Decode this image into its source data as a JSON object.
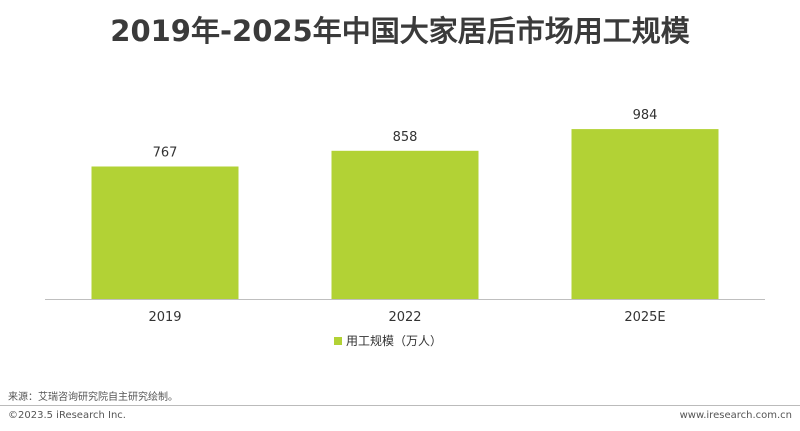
{
  "title": "2019年-2025年中国大家居后市场用工规模",
  "source": "来源：艾瑞咨询研究院自主研究绘制。",
  "footer": {
    "copyright": "©2023.5 iResearch Inc.",
    "website": "www.iresearch.com.cn"
  },
  "colors": {
    "bar": "#b2d235",
    "axis": "#bfbfbf",
    "text": "#333333"
  },
  "chart_data": {
    "type": "bar",
    "categories": [
      "2019",
      "2022",
      "2025E"
    ],
    "series": [
      {
        "name": "用工规模（万人）",
        "values": [
          767,
          858,
          984
        ]
      }
    ],
    "data_labels": [
      "767",
      "858",
      "984"
    ],
    "legend_position": "bottom",
    "grid": false,
    "ylim": [
      0,
      1100
    ]
  }
}
